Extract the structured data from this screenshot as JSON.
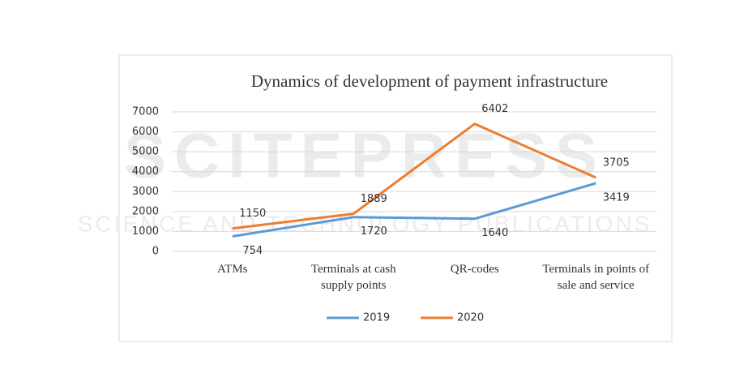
{
  "chart_data": {
    "type": "line",
    "title": "Dynamics of development of payment infrastructure",
    "categories": [
      "ATMs",
      "Terminals at cash supply points",
      "QR-codes",
      "Terminals in points of sale and service"
    ],
    "series": [
      {
        "name": "2019",
        "color": "#5b9bd5",
        "values": [
          754,
          1720,
          1640,
          3419
        ]
      },
      {
        "name": "2020",
        "color": "#ed7d31",
        "values": [
          1150,
          1889,
          6402,
          3705
        ]
      }
    ],
    "ylim": [
      0,
      7000
    ],
    "yticks": [
      0,
      1000,
      2000,
      3000,
      4000,
      5000,
      6000,
      7000
    ],
    "grid": true,
    "legend": "bottom"
  },
  "watermark": {
    "title": "SCITEPRESS",
    "subtitle": "SCIENCE AND TECHNOLOGY PUBLICATIONS"
  }
}
